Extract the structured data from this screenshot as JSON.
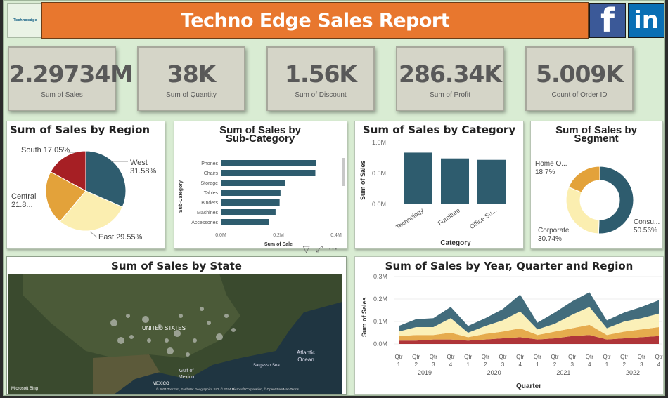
{
  "header": {
    "logo_text": "Technoedge",
    "title": "Techno Edge Sales Report",
    "facebook_glyph": "f",
    "linkedin_glyph": "in",
    "icons": [
      "logo-icon",
      "facebook-icon",
      "linkedin-icon"
    ]
  },
  "kpis": [
    {
      "value": "2.29734M",
      "label": "Sum of Sales"
    },
    {
      "value": "38K",
      "label": "Sum of Quantity"
    },
    {
      "value": "1.56K",
      "label": "Sum of Discount"
    },
    {
      "value": "286.34K",
      "label": "Sum of Profit"
    },
    {
      "value": "5.009K",
      "label": "Count of Order ID"
    }
  ],
  "visual_header_icons": [
    "filter-icon",
    "focus-mode-icon",
    "more-options-icon"
  ],
  "colors": {
    "teal": "#2e5c6e",
    "orange": "#e3a23a",
    "cream": "#fbeeb0",
    "red": "#a61f24",
    "title_orange": "#e8772e"
  },
  "map": {
    "title": "Sum of Sales by State",
    "labels": {
      "country": "UNITED STATES",
      "ocean": "Atlantic\nOcean",
      "gulf": "Gulf of\nMexico",
      "mexico": "MEXICO",
      "sargasso": "Sargasso Sea"
    },
    "bing": "Microsoft Bing",
    "credits": "© 2024 TomTom, Earthstar Geographics SIO, © 2024 Microsoft Corporation, © OpenStreetMap  Terms"
  },
  "chart_data": [
    {
      "type": "pie",
      "title": "Sum of Sales by Region",
      "slices": [
        {
          "name": "West",
          "value": 31.58,
          "label": "West\n31.58%",
          "color": "#2e5c6e"
        },
        {
          "name": "East",
          "value": 29.55,
          "label": "East 29.55%",
          "color": "#fbeeb0"
        },
        {
          "name": "Central",
          "value": 21.82,
          "label": "Central\n21.8...",
          "color": "#e3a23a"
        },
        {
          "name": "South",
          "value": 17.05,
          "label": "South 17.05%",
          "color": "#a61f24"
        }
      ]
    },
    {
      "type": "bar",
      "orientation": "horizontal",
      "title": "Sum of Sales by\nSub-Category",
      "ylabel": "Sub-Category",
      "xlabel": "Sum of Sale",
      "categories": [
        "Phones",
        "Chairs",
        "Storage",
        "Tables",
        "Binders",
        "Machines",
        "Accessories"
      ],
      "values": [
        0.33,
        0.328,
        0.224,
        0.207,
        0.204,
        0.19,
        0.168
      ],
      "xticks": [
        "0.0M",
        "0.2M",
        "0.4M"
      ],
      "xlim": [
        0,
        0.4
      ]
    },
    {
      "type": "bar",
      "title": "Sum of Sales by Category",
      "xlabel": "Category",
      "ylabel": "Sum of Sales",
      "categories": [
        "Technology",
        "Furniture",
        "Office Su..."
      ],
      "values": [
        0.836,
        0.742,
        0.719
      ],
      "yticks": [
        "0.0M",
        "0.5M",
        "1.0M"
      ],
      "ylim": [
        0,
        1.0
      ],
      "color": "#2e5c6e"
    },
    {
      "type": "pie",
      "title": "Sum of Sales by\nSegment",
      "donut": true,
      "slices": [
        {
          "name": "Consumer",
          "value": 50.56,
          "label": "Consu...\n50.56%",
          "color": "#2e5c6e"
        },
        {
          "name": "Corporate",
          "value": 30.74,
          "label": "Corporate\n30.74%",
          "color": "#fbeeb0"
        },
        {
          "name": "Home Office",
          "value": 18.7,
          "label": "Home O...\n18.7%",
          "color": "#e3a23a"
        }
      ]
    },
    {
      "type": "area",
      "stacked": true,
      "title": "Sum of Sales by Year, Quarter and Region",
      "xlabel": "Quarter",
      "ylabel": "Sum of Sales",
      "x": [
        "Qtr 1",
        "Qtr 2",
        "Qtr 3",
        "Qtr 4",
        "Qtr 1",
        "Qtr 2",
        "Qtr 3",
        "Qtr 4",
        "Qtr 1",
        "Qtr 2",
        "Qtr 3",
        "Qtr 4",
        "Qtr 1",
        "Qtr 2",
        "Qtr 3",
        "Qtr 4"
      ],
      "years": [
        "2019",
        "2020",
        "2021",
        "2022"
      ],
      "yticks": [
        "0.0M",
        "0.1M",
        "0.2M",
        "0.3M"
      ],
      "ylim": [
        0,
        0.3
      ],
      "series": [
        {
          "name": "West",
          "color": "#2e5c6e",
          "values": [
            0.025,
            0.035,
            0.04,
            0.05,
            0.03,
            0.035,
            0.05,
            0.075,
            0.03,
            0.05,
            0.06,
            0.065,
            0.035,
            0.04,
            0.05,
            0.06
          ]
        },
        {
          "name": "East",
          "color": "#fbeeb0",
          "values": [
            0.02,
            0.035,
            0.035,
            0.065,
            0.02,
            0.035,
            0.05,
            0.075,
            0.025,
            0.035,
            0.06,
            0.08,
            0.03,
            0.045,
            0.05,
            0.06
          ]
        },
        {
          "name": "Central",
          "color": "#e3a23a",
          "values": [
            0.02,
            0.025,
            0.02,
            0.03,
            0.015,
            0.025,
            0.03,
            0.04,
            0.02,
            0.03,
            0.035,
            0.045,
            0.02,
            0.03,
            0.035,
            0.04
          ]
        },
        {
          "name": "South",
          "color": "#a61f24",
          "values": [
            0.015,
            0.015,
            0.02,
            0.02,
            0.015,
            0.02,
            0.025,
            0.03,
            0.02,
            0.025,
            0.035,
            0.04,
            0.02,
            0.025,
            0.03,
            0.035
          ]
        }
      ]
    }
  ]
}
